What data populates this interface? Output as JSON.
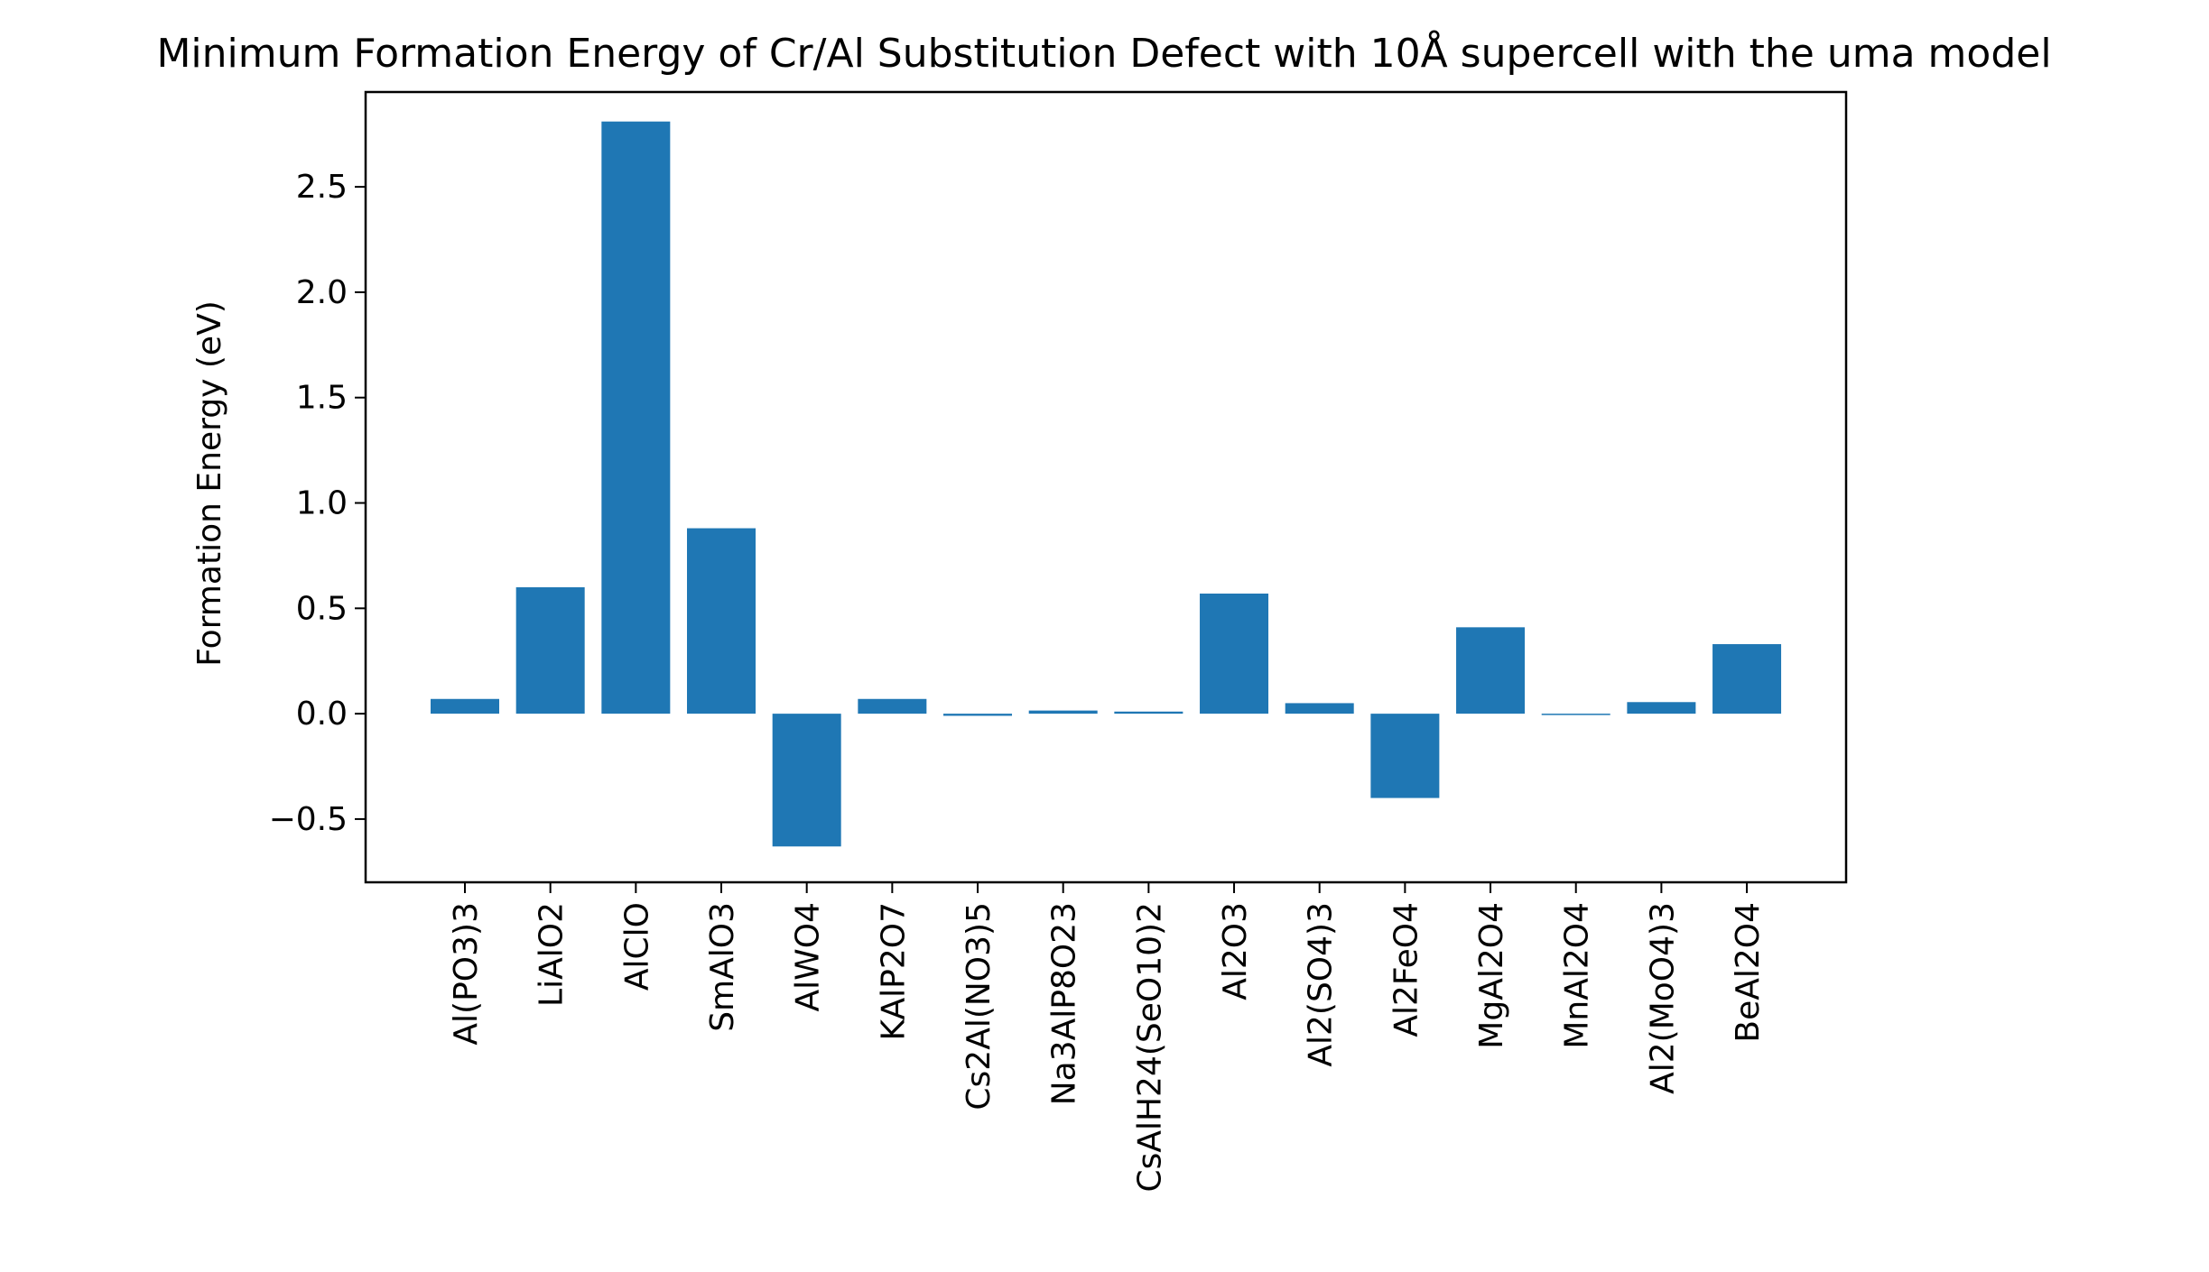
{
  "chart_data": {
    "type": "bar",
    "title": "Minimum Formation Energy of Cr/Al Substitution Defect with 10Å supercell with the uma model",
    "xlabel": "",
    "ylabel": "Formation Energy (eV)",
    "categories": [
      "Al(PO3)3",
      "LiAlO2",
      "AlClO",
      "SmAlO3",
      "AlWO4",
      "KAlP2O7",
      "Cs2Al(NO3)5",
      "Na3AlP8O23",
      "CsAlH24(SeO10)2",
      "Al2O3",
      "Al2(SO4)3",
      "Al2FeO4",
      "MgAl2O4",
      "MnAl2O4",
      "Al2(MoO4)3",
      "BeAl2O4"
    ],
    "values": [
      0.07,
      0.6,
      2.81,
      0.88,
      -0.63,
      0.07,
      -0.01,
      0.015,
      0.01,
      0.57,
      0.05,
      -0.4,
      0.41,
      -0.005,
      0.055,
      0.33
    ],
    "ylim": [
      -0.8,
      2.95
    ],
    "yticks": [
      -0.5,
      0.0,
      0.5,
      1.0,
      1.5,
      2.0,
      2.5
    ],
    "ytick_labels": [
      "−0.5",
      "0.0",
      "0.5",
      "1.0",
      "1.5",
      "2.0",
      "2.5"
    ],
    "grid": false,
    "bar_color": "#1f77b4"
  }
}
